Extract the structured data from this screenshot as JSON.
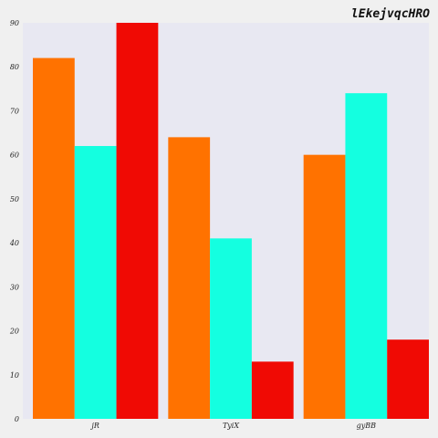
{
  "chart_data": {
    "type": "bar",
    "title": "lEkejvqcHRO",
    "xlabel": "",
    "ylabel": "",
    "categories": [
      "jR",
      "TyiX",
      "gyBB"
    ],
    "series": [
      {
        "color": "#ff7200",
        "values": [
          82,
          64,
          60
        ]
      },
      {
        "color": "#14ffe0",
        "values": [
          62,
          41,
          74
        ]
      },
      {
        "color": "#f00a04",
        "values": [
          90,
          13,
          18
        ]
      }
    ],
    "ylim": [
      0,
      90
    ],
    "yticks": [
      0,
      10,
      20,
      30,
      40,
      50,
      60,
      70,
      80,
      90
    ],
    "grid": false,
    "legend": "none",
    "plot_background": "#e8e8f2"
  }
}
